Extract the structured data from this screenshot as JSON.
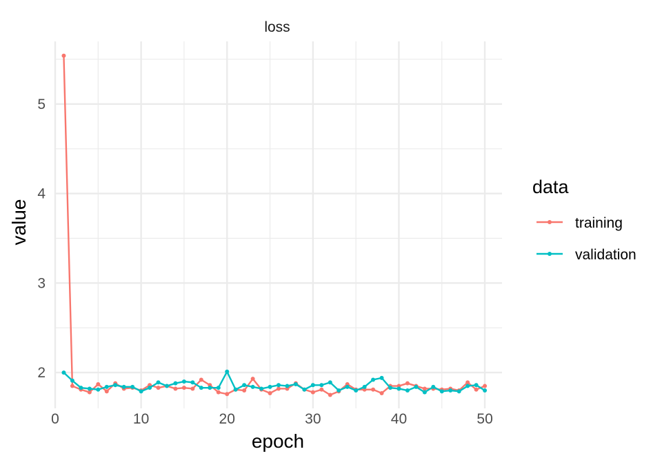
{
  "chart_data": {
    "type": "line",
    "title": "loss",
    "xlabel": "epoch",
    "ylabel": "value",
    "xlim": [
      0,
      52
    ],
    "ylim": [
      1.6,
      5.7
    ],
    "xticks": [
      0,
      10,
      20,
      30,
      40,
      50
    ],
    "yticks": [
      2,
      3,
      4,
      5
    ],
    "grid": true,
    "legend": {
      "title": "data",
      "placement": "right"
    },
    "x": [
      1,
      2,
      3,
      4,
      5,
      6,
      7,
      8,
      9,
      10,
      11,
      12,
      13,
      14,
      15,
      16,
      17,
      18,
      19,
      20,
      21,
      22,
      23,
      24,
      25,
      26,
      27,
      28,
      29,
      30,
      31,
      32,
      33,
      34,
      35,
      36,
      37,
      38,
      39,
      40,
      41,
      42,
      43,
      44,
      45,
      46,
      47,
      48,
      49,
      50
    ],
    "series": [
      {
        "name": "training",
        "color": "#F8766D",
        "values": [
          5.54,
          1.85,
          1.81,
          1.78,
          1.87,
          1.79,
          1.88,
          1.82,
          1.83,
          1.8,
          1.86,
          1.83,
          1.85,
          1.82,
          1.83,
          1.82,
          1.92,
          1.86,
          1.78,
          1.76,
          1.81,
          1.8,
          1.93,
          1.81,
          1.77,
          1.82,
          1.82,
          1.88,
          1.81,
          1.78,
          1.81,
          1.75,
          1.79,
          1.87,
          1.81,
          1.81,
          1.81,
          1.77,
          1.85,
          1.85,
          1.88,
          1.85,
          1.82,
          1.82,
          1.81,
          1.82,
          1.8,
          1.89,
          1.81,
          1.85
        ]
      },
      {
        "name": "validation",
        "color": "#00BFC4",
        "values": [
          2.0,
          1.91,
          1.83,
          1.82,
          1.81,
          1.84,
          1.86,
          1.84,
          1.84,
          1.79,
          1.83,
          1.89,
          1.85,
          1.88,
          1.9,
          1.89,
          1.83,
          1.83,
          1.83,
          2.01,
          1.81,
          1.86,
          1.84,
          1.82,
          1.84,
          1.86,
          1.85,
          1.87,
          1.81,
          1.86,
          1.86,
          1.89,
          1.8,
          1.84,
          1.8,
          1.84,
          1.92,
          1.94,
          1.83,
          1.82,
          1.8,
          1.84,
          1.78,
          1.84,
          1.79,
          1.8,
          1.79,
          1.85,
          1.86,
          1.8
        ]
      }
    ]
  }
}
